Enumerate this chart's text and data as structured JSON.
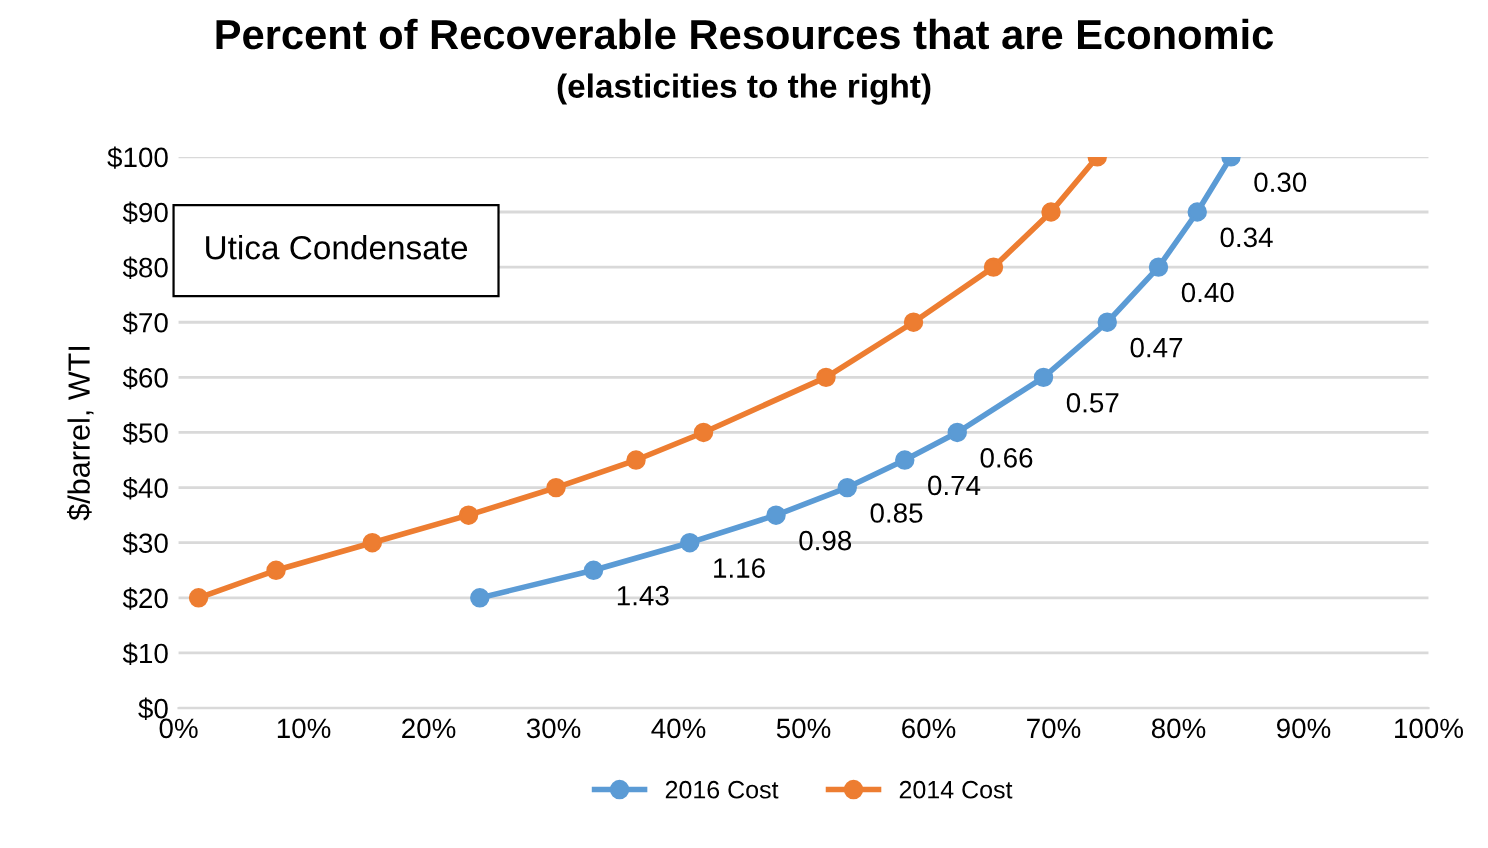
{
  "chart_data": {
    "type": "line",
    "title": "Percent of Recoverable Resources that are Economic",
    "subtitle": "(elasticities to the right)",
    "ylabel": "$/barrel, WTI",
    "series": [
      {
        "name": "2016 Cost",
        "color": "#5b9bd5",
        "x": [
          24.1,
          33.2,
          40.9,
          47.8,
          53.5,
          58.1,
          62.3,
          69.2,
          74.3,
          78.4,
          81.5,
          84.2
        ],
        "values": [
          20,
          25,
          30,
          35,
          40,
          45,
          50,
          60,
          70,
          80,
          90,
          100
        ]
      },
      {
        "name": "2014 Cost",
        "color": "#ed7d31",
        "x": [
          1.6,
          7.8,
          15.5,
          23.2,
          30.2,
          36.6,
          42.0,
          51.8,
          58.8,
          65.2,
          69.8,
          73.5
        ],
        "values": [
          20,
          25,
          30,
          35,
          40,
          45,
          50,
          60,
          70,
          80,
          90,
          100
        ]
      }
    ],
    "annotations": [
      "Utica Condensate",
      {
        "text": "1.43",
        "x": 33.2,
        "y": 25
      },
      {
        "text": "1.16",
        "x": 40.9,
        "y": 30
      },
      {
        "text": "0.98",
        "x": 47.8,
        "y": 35
      },
      {
        "text": "0.85",
        "x": 53.5,
        "y": 40
      },
      {
        "text": "0.74",
        "x": 58.1,
        "y": 45
      },
      {
        "text": "0.66",
        "x": 62.3,
        "y": 50
      },
      {
        "text": "0.57",
        "x": 69.2,
        "y": 60
      },
      {
        "text": "0.47",
        "x": 74.3,
        "y": 70
      },
      {
        "text": "0.40",
        "x": 78.4,
        "y": 80
      },
      {
        "text": "0.34",
        "x": 81.5,
        "y": 90
      },
      {
        "text": "0.30",
        "x": 84.2,
        "y": 100
      }
    ],
    "xlim": [
      0,
      100
    ],
    "xticks": [
      {
        "value": 0,
        "label": "0%"
      },
      {
        "value": 10,
        "label": "10%"
      },
      {
        "value": 20,
        "label": "20%"
      },
      {
        "value": 30,
        "label": "30%"
      },
      {
        "value": 40,
        "label": "40%"
      },
      {
        "value": 50,
        "label": "50%"
      },
      {
        "value": 60,
        "label": "60%"
      },
      {
        "value": 70,
        "label": "70%"
      },
      {
        "value": 80,
        "label": "80%"
      },
      {
        "value": 90,
        "label": "90%"
      },
      {
        "value": 100,
        "label": "100%"
      }
    ],
    "ylim": [
      0,
      100
    ],
    "yticks": [
      {
        "value": 0,
        "label": "$0"
      },
      {
        "value": 10,
        "label": "$10"
      },
      {
        "value": 20,
        "label": "$20"
      },
      {
        "value": 30,
        "label": "$30"
      },
      {
        "value": 40,
        "label": "$40"
      },
      {
        "value": 50,
        "label": "$50"
      },
      {
        "value": 60,
        "label": "$60"
      },
      {
        "value": 70,
        "label": "$70"
      },
      {
        "value": 80,
        "label": "$80"
      },
      {
        "value": 90,
        "label": "$90"
      },
      {
        "value": 100,
        "label": "$100"
      }
    ],
    "grid": "y",
    "legend": "bottom",
    "marker": "circle",
    "line_style": "solid"
  }
}
